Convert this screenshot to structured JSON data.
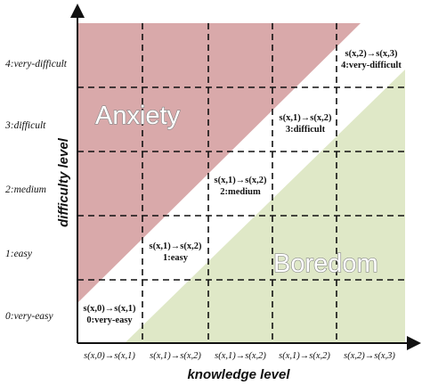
{
  "axes": {
    "y_title": "difficulty level",
    "x_title": "knowledge level",
    "y_ticks": [
      "0:very-easy",
      "1:easy",
      "2:medium",
      "3:difficult",
      "4:very-difficult"
    ],
    "x_ticks": [
      "s(x,0)→s(x,1)",
      "s(x,1)→s(x,2)",
      "s(x,1)→s(x,2)",
      "s(x,1)→s(x,2)",
      "s(x,2)→s(x,3)"
    ]
  },
  "zones": {
    "anxiety": {
      "label": "Anxiety",
      "color": "#d9a9aa"
    },
    "boredom": {
      "label": "Boredom",
      "color": "#dfe8c7"
    }
  },
  "flow_cells": [
    {
      "line1": "s(x,0)→s(x,1)",
      "line2": "0:very-easy"
    },
    {
      "line1": "s(x,1)→s(x,2)",
      "line2": "1:easy"
    },
    {
      "line1": "s(x,1)→s(x,2)",
      "line2": "2:medium"
    },
    {
      "line1": "s(x,1)→s(x,2)",
      "line2": "3:difficult"
    },
    {
      "line1": "s(x,2)→s(x,3)",
      "line2": "4:very-difficult"
    }
  ]
}
